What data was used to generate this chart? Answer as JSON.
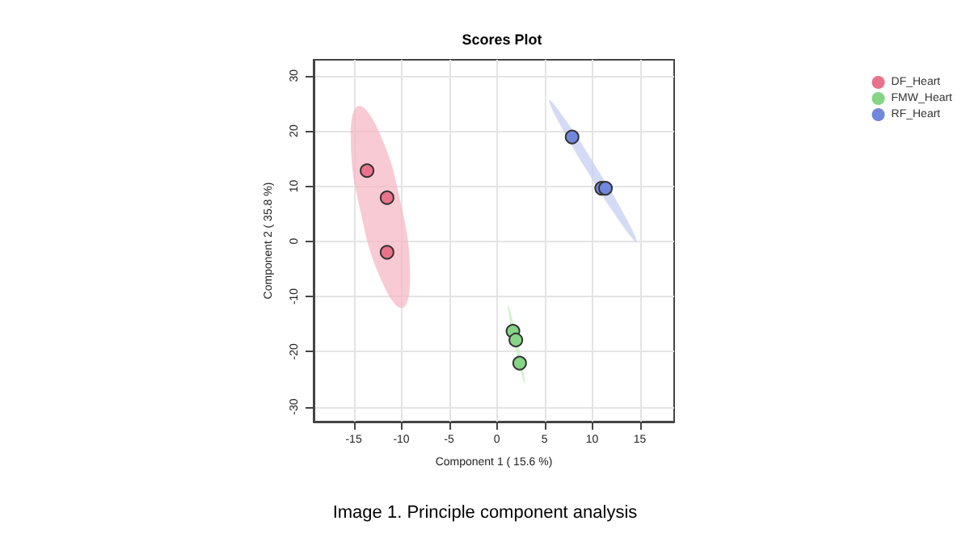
{
  "chart_data": {
    "type": "scatter",
    "title": "Scores Plot",
    "xlabel": "Component 1 ( 15.6 %)",
    "ylabel": "Component 2 ( 35.8 %)",
    "annotations": [
      "Image 1. Principle component analysis"
    ],
    "series": [
      {
        "type": "area",
        "marker": "none",
        "color": "#f5b8c6",
        "x": [
          -9.9,
          -9.09,
          -10.09,
          -12.33,
          -14.5,
          -15.31,
          -14.3,
          -12.07
        ],
        "values": [
          -12.1,
          -6.1,
          7.1,
          19.8,
          24.5,
          18.7,
          5.5,
          -7.2
        ]
      },
      {
        "type": "area",
        "marker": "none",
        "color": "#c3f0c3",
        "x": [
          2.94,
          2.82,
          2.26,
          1.58,
          1.19,
          1.3,
          1.87,
          2.55
        ],
        "values": [
          -25.9,
          -23.8,
          -18.7,
          -13.7,
          -11.6,
          -13.8,
          -18.8,
          -23.8
        ]
      },
      {
        "type": "area",
        "marker": "none",
        "color": "#c6cff2",
        "x": [
          14.65,
          13.62,
          10.51,
          7.13,
          5.49,
          6.52,
          9.63,
          13.01
        ],
        "values": [
          -0.1,
          4.0,
          13.2,
          22.2,
          25.6,
          21.5,
          12.3,
          3.3
        ]
      },
      {
        "name": "DF_Heart",
        "color": "#e8738a",
        "x": [
          -13.6,
          -11.5,
          -11.5
        ],
        "values": [
          12.8,
          7.9,
          -2.0
        ]
      },
      {
        "name": "FMW_Heart",
        "color": "#86d486",
        "x": [
          1.7,
          2.0,
          2.4
        ],
        "values": [
          -16.3,
          -17.9,
          -22.1
        ]
      },
      {
        "name": "RF_Heart",
        "color": "#7088dc",
        "x": [
          7.9,
          11.0,
          11.4
        ],
        "values": [
          18.9,
          9.6,
          9.6
        ]
      }
    ],
    "xlim": [
      -19.2,
      18.6
    ],
    "xticks": [
      -15,
      -10,
      -5,
      0,
      5,
      10,
      15
    ],
    "ylim": [
      -32.7,
      32.9
    ],
    "yticks": [
      -30,
      -20,
      -10,
      0,
      10,
      20,
      30
    ],
    "grid": true,
    "legend": "top right",
    "marker": "circle"
  }
}
